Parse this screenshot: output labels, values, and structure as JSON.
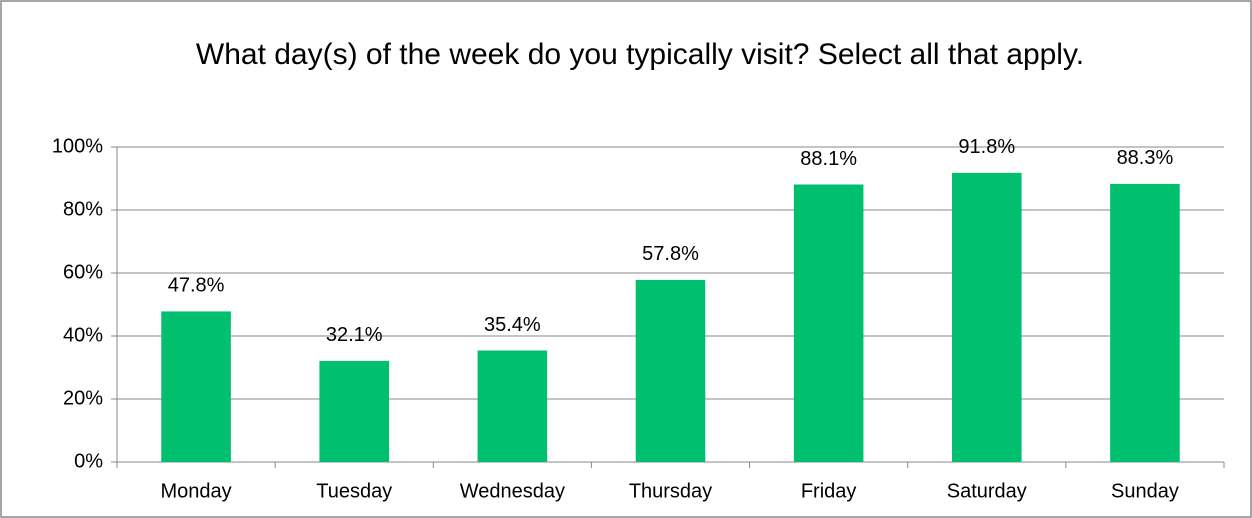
{
  "chart_data": {
    "type": "bar",
    "title": "What day(s) of the week do you typically visit? Select all that apply.",
    "categories": [
      "Monday",
      "Tuesday",
      "Wednesday",
      "Thursday",
      "Friday",
      "Saturday",
      "Sunday"
    ],
    "values": [
      47.8,
      32.1,
      35.4,
      57.8,
      88.1,
      91.8,
      88.3
    ],
    "value_labels": [
      "47.8%",
      "32.1%",
      "35.4%",
      "57.8%",
      "88.1%",
      "91.8%",
      "88.3%"
    ],
    "color": "#00bf6f",
    "ylim": [
      0,
      100
    ],
    "yticks": [
      {
        "value": 0,
        "label": "0%"
      },
      {
        "value": 20,
        "label": "20%"
      },
      {
        "value": 40,
        "label": "40%"
      },
      {
        "value": 60,
        "label": "60%"
      },
      {
        "value": 80,
        "label": "80%"
      },
      {
        "value": 100,
        "label": "100%"
      }
    ],
    "grid": true
  }
}
